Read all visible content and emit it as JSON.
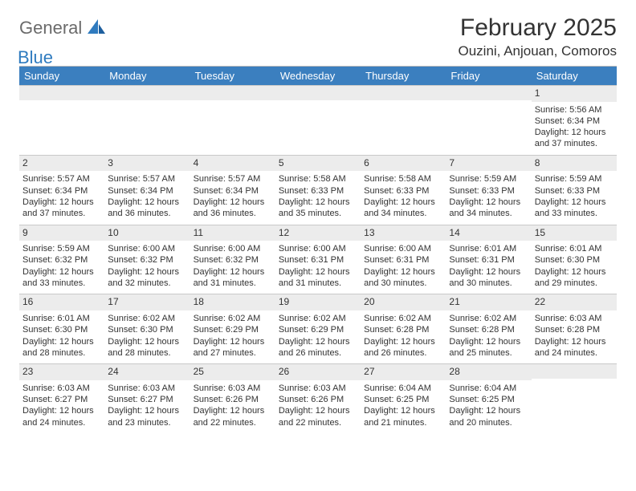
{
  "logo": {
    "general": "General",
    "blue": "Blue"
  },
  "title": "February 2025",
  "location": "Ouzini, Anjouan, Comoros",
  "colors": {
    "header_bg": "#3b7fbf",
    "header_text": "#ffffff",
    "daynum_bg": "#ececec",
    "border": "#c9c9c9",
    "text": "#333333",
    "logo_gray": "#6b6b6b",
    "logo_blue": "#2f7bbf",
    "page_bg": "#ffffff"
  },
  "weekdays": [
    "Sunday",
    "Monday",
    "Tuesday",
    "Wednesday",
    "Thursday",
    "Friday",
    "Saturday"
  ],
  "weeks": [
    [
      {
        "day": "",
        "sunrise": "",
        "sunset": "",
        "daylight1": "",
        "daylight2": ""
      },
      {
        "day": "",
        "sunrise": "",
        "sunset": "",
        "daylight1": "",
        "daylight2": ""
      },
      {
        "day": "",
        "sunrise": "",
        "sunset": "",
        "daylight1": "",
        "daylight2": ""
      },
      {
        "day": "",
        "sunrise": "",
        "sunset": "",
        "daylight1": "",
        "daylight2": ""
      },
      {
        "day": "",
        "sunrise": "",
        "sunset": "",
        "daylight1": "",
        "daylight2": ""
      },
      {
        "day": "",
        "sunrise": "",
        "sunset": "",
        "daylight1": "",
        "daylight2": ""
      },
      {
        "day": "1",
        "sunrise": "Sunrise: 5:56 AM",
        "sunset": "Sunset: 6:34 PM",
        "daylight1": "Daylight: 12 hours",
        "daylight2": "and 37 minutes."
      }
    ],
    [
      {
        "day": "2",
        "sunrise": "Sunrise: 5:57 AM",
        "sunset": "Sunset: 6:34 PM",
        "daylight1": "Daylight: 12 hours",
        "daylight2": "and 37 minutes."
      },
      {
        "day": "3",
        "sunrise": "Sunrise: 5:57 AM",
        "sunset": "Sunset: 6:34 PM",
        "daylight1": "Daylight: 12 hours",
        "daylight2": "and 36 minutes."
      },
      {
        "day": "4",
        "sunrise": "Sunrise: 5:57 AM",
        "sunset": "Sunset: 6:34 PM",
        "daylight1": "Daylight: 12 hours",
        "daylight2": "and 36 minutes."
      },
      {
        "day": "5",
        "sunrise": "Sunrise: 5:58 AM",
        "sunset": "Sunset: 6:33 PM",
        "daylight1": "Daylight: 12 hours",
        "daylight2": "and 35 minutes."
      },
      {
        "day": "6",
        "sunrise": "Sunrise: 5:58 AM",
        "sunset": "Sunset: 6:33 PM",
        "daylight1": "Daylight: 12 hours",
        "daylight2": "and 34 minutes."
      },
      {
        "day": "7",
        "sunrise": "Sunrise: 5:59 AM",
        "sunset": "Sunset: 6:33 PM",
        "daylight1": "Daylight: 12 hours",
        "daylight2": "and 34 minutes."
      },
      {
        "day": "8",
        "sunrise": "Sunrise: 5:59 AM",
        "sunset": "Sunset: 6:33 PM",
        "daylight1": "Daylight: 12 hours",
        "daylight2": "and 33 minutes."
      }
    ],
    [
      {
        "day": "9",
        "sunrise": "Sunrise: 5:59 AM",
        "sunset": "Sunset: 6:32 PM",
        "daylight1": "Daylight: 12 hours",
        "daylight2": "and 33 minutes."
      },
      {
        "day": "10",
        "sunrise": "Sunrise: 6:00 AM",
        "sunset": "Sunset: 6:32 PM",
        "daylight1": "Daylight: 12 hours",
        "daylight2": "and 32 minutes."
      },
      {
        "day": "11",
        "sunrise": "Sunrise: 6:00 AM",
        "sunset": "Sunset: 6:32 PM",
        "daylight1": "Daylight: 12 hours",
        "daylight2": "and 31 minutes."
      },
      {
        "day": "12",
        "sunrise": "Sunrise: 6:00 AM",
        "sunset": "Sunset: 6:31 PM",
        "daylight1": "Daylight: 12 hours",
        "daylight2": "and 31 minutes."
      },
      {
        "day": "13",
        "sunrise": "Sunrise: 6:00 AM",
        "sunset": "Sunset: 6:31 PM",
        "daylight1": "Daylight: 12 hours",
        "daylight2": "and 30 minutes."
      },
      {
        "day": "14",
        "sunrise": "Sunrise: 6:01 AM",
        "sunset": "Sunset: 6:31 PM",
        "daylight1": "Daylight: 12 hours",
        "daylight2": "and 30 minutes."
      },
      {
        "day": "15",
        "sunrise": "Sunrise: 6:01 AM",
        "sunset": "Sunset: 6:30 PM",
        "daylight1": "Daylight: 12 hours",
        "daylight2": "and 29 minutes."
      }
    ],
    [
      {
        "day": "16",
        "sunrise": "Sunrise: 6:01 AM",
        "sunset": "Sunset: 6:30 PM",
        "daylight1": "Daylight: 12 hours",
        "daylight2": "and 28 minutes."
      },
      {
        "day": "17",
        "sunrise": "Sunrise: 6:02 AM",
        "sunset": "Sunset: 6:30 PM",
        "daylight1": "Daylight: 12 hours",
        "daylight2": "and 28 minutes."
      },
      {
        "day": "18",
        "sunrise": "Sunrise: 6:02 AM",
        "sunset": "Sunset: 6:29 PM",
        "daylight1": "Daylight: 12 hours",
        "daylight2": "and 27 minutes."
      },
      {
        "day": "19",
        "sunrise": "Sunrise: 6:02 AM",
        "sunset": "Sunset: 6:29 PM",
        "daylight1": "Daylight: 12 hours",
        "daylight2": "and 26 minutes."
      },
      {
        "day": "20",
        "sunrise": "Sunrise: 6:02 AM",
        "sunset": "Sunset: 6:28 PM",
        "daylight1": "Daylight: 12 hours",
        "daylight2": "and 26 minutes."
      },
      {
        "day": "21",
        "sunrise": "Sunrise: 6:02 AM",
        "sunset": "Sunset: 6:28 PM",
        "daylight1": "Daylight: 12 hours",
        "daylight2": "and 25 minutes."
      },
      {
        "day": "22",
        "sunrise": "Sunrise: 6:03 AM",
        "sunset": "Sunset: 6:28 PM",
        "daylight1": "Daylight: 12 hours",
        "daylight2": "and 24 minutes."
      }
    ],
    [
      {
        "day": "23",
        "sunrise": "Sunrise: 6:03 AM",
        "sunset": "Sunset: 6:27 PM",
        "daylight1": "Daylight: 12 hours",
        "daylight2": "and 24 minutes."
      },
      {
        "day": "24",
        "sunrise": "Sunrise: 6:03 AM",
        "sunset": "Sunset: 6:27 PM",
        "daylight1": "Daylight: 12 hours",
        "daylight2": "and 23 minutes."
      },
      {
        "day": "25",
        "sunrise": "Sunrise: 6:03 AM",
        "sunset": "Sunset: 6:26 PM",
        "daylight1": "Daylight: 12 hours",
        "daylight2": "and 22 minutes."
      },
      {
        "day": "26",
        "sunrise": "Sunrise: 6:03 AM",
        "sunset": "Sunset: 6:26 PM",
        "daylight1": "Daylight: 12 hours",
        "daylight2": "and 22 minutes."
      },
      {
        "day": "27",
        "sunrise": "Sunrise: 6:04 AM",
        "sunset": "Sunset: 6:25 PM",
        "daylight1": "Daylight: 12 hours",
        "daylight2": "and 21 minutes."
      },
      {
        "day": "28",
        "sunrise": "Sunrise: 6:04 AM",
        "sunset": "Sunset: 6:25 PM",
        "daylight1": "Daylight: 12 hours",
        "daylight2": "and 20 minutes."
      },
      {
        "day": "",
        "sunrise": "",
        "sunset": "",
        "daylight1": "",
        "daylight2": ""
      }
    ]
  ]
}
